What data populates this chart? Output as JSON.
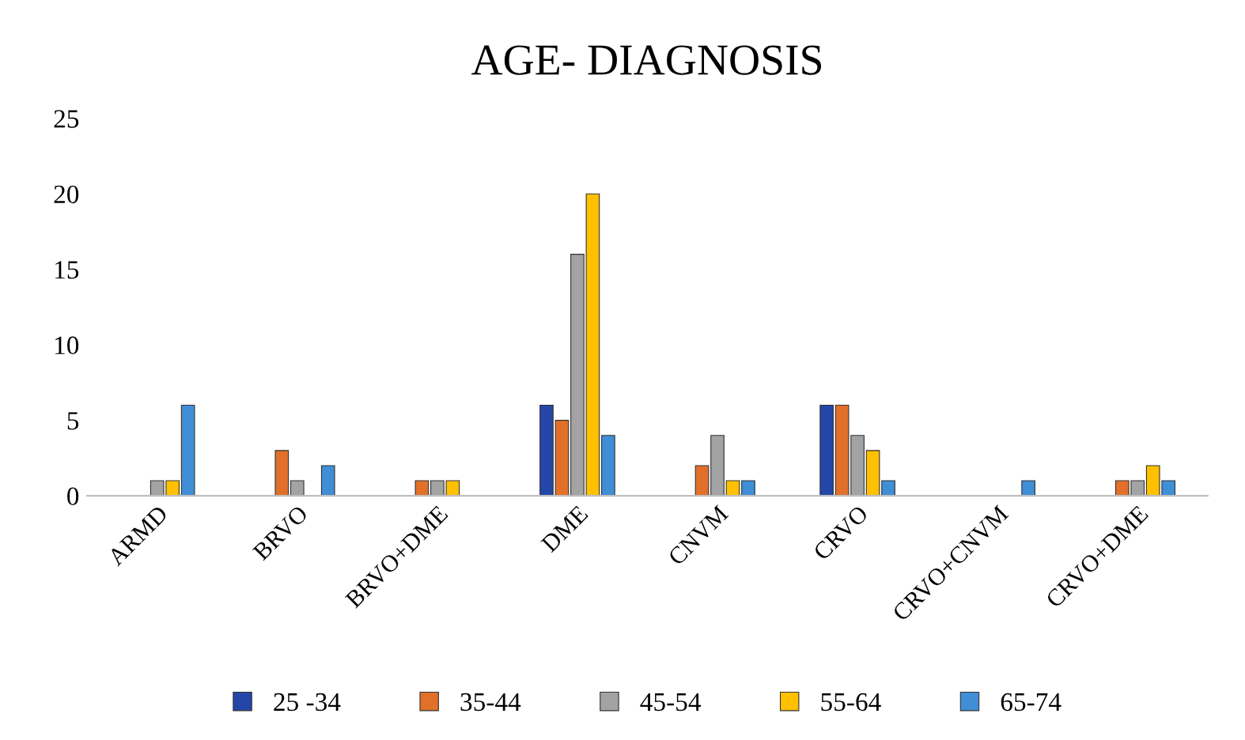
{
  "chart_data": {
    "type": "bar",
    "title": "AGE- DIAGNOSIS",
    "categories": [
      "ARMD",
      "BRVO",
      "BRVO+DME",
      "DME",
      "CNVM",
      "CRVO",
      "CRVO+CNVM",
      "CRVO+DME"
    ],
    "series": [
      {
        "name": "25 -34",
        "color": "#2446a8",
        "values": [
          0,
          0,
          0,
          6,
          0,
          6,
          0,
          0
        ]
      },
      {
        "name": "35-44",
        "color": "#e2702a",
        "values": [
          0,
          3,
          1,
          5,
          2,
          6,
          0,
          1
        ]
      },
      {
        "name": "45-54",
        "color": "#a3a3a3",
        "values": [
          1,
          1,
          1,
          16,
          4,
          4,
          0,
          1
        ]
      },
      {
        "name": "55-64",
        "color": "#ffc000",
        "values": [
          1,
          0,
          1,
          20,
          1,
          3,
          0,
          2
        ]
      },
      {
        "name": "65-74",
        "color": "#3f8ed6",
        "values": [
          6,
          2,
          0,
          4,
          1,
          1,
          1,
          1
        ]
      }
    ],
    "ylim": [
      0,
      25
    ],
    "yticks": [
      0,
      5,
      10,
      15,
      20,
      25
    ],
    "grid": false,
    "legend": "bottom"
  }
}
